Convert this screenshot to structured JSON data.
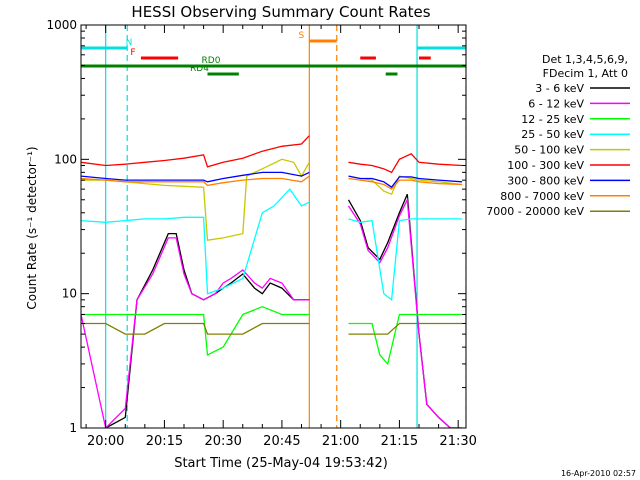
{
  "chart_data": {
    "type": "line",
    "title": "HESSI Observing Summary Count Rates",
    "xlabel": "Start Time (25-May-04 19:53:42)",
    "ylabel": "Count Rate (s⁻¹ detector⁻¹)",
    "yscale": "log",
    "ylim": [
      1,
      1000
    ],
    "xlim_minutes": [
      1193.7,
      1292
    ],
    "x_tick_labels": [
      "20:00",
      "20:15",
      "20:30",
      "20:45",
      "21:00",
      "21:15",
      "21:30"
    ],
    "x_tick_minutes": [
      1200,
      1215,
      1230,
      1245,
      1260,
      1275,
      1290
    ],
    "y_tick_labels": [
      "1",
      "10",
      "100",
      "1000"
    ],
    "y_tick_values": [
      1,
      10,
      100,
      1000
    ],
    "legend_header": [
      "Det 1,3,4,5,6,9,",
      "FDecim 1, Att 0"
    ],
    "legend_position": "right",
    "footer_date": "16-Apr-2010 02:57",
    "flags": [
      {
        "label": "N",
        "color": "#00e0e0",
        "segments": [
          [
            1193.7,
            1205.5
          ],
          [
            1279.5,
            1292
          ]
        ]
      },
      {
        "label": "F",
        "color": "#ff0000",
        "segments": [
          [
            1209,
            1218.5
          ],
          [
            1265,
            1269
          ],
          [
            1280,
            1283
          ]
        ]
      },
      {
        "label": "S",
        "color": "#ff8000",
        "segments": [
          [
            1252,
            1259
          ]
        ]
      },
      {
        "label": "RD0",
        "color": "#008000",
        "segments": [
          [
            1193.7,
            1292
          ]
        ]
      },
      {
        "label": "RD4",
        "color": "#008000",
        "segments": [
          [
            1226,
            1234
          ],
          [
            1271.5,
            1274.5
          ]
        ]
      }
    ],
    "vlines": [
      {
        "x": 1200,
        "color": "#00e0e0",
        "style": "solid"
      },
      {
        "x": 1205.5,
        "color": "#00e0e0",
        "style": "dashed"
      },
      {
        "x": 1252,
        "color": "#ff8000",
        "style": "solid"
      },
      {
        "x": 1259,
        "color": "#ff8000",
        "style": "dashed"
      },
      {
        "x": 1279.5,
        "color": "#00e0e0",
        "style": "solid"
      },
      {
        "x": 1292,
        "color": "#00e0e0",
        "style": "dashed"
      }
    ],
    "series": [
      {
        "name": "3 - 6 keV",
        "color": "#000000",
        "x": [
          1200,
          1205,
          1208,
          1212,
          1216,
          1218,
          1220,
          1222,
          1225,
          1228,
          1230,
          1232,
          1235,
          1238,
          1240,
          1242,
          1245,
          1248,
          1250,
          1252,
          1259,
          1262,
          1265,
          1267,
          1270,
          1272,
          1275,
          1277,
          1280,
          1282,
          1285,
          1288,
          1291
        ],
        "y": [
          1,
          1.2,
          9,
          15,
          28,
          28,
          15,
          10,
          9,
          10,
          11,
          12,
          14,
          11,
          10,
          12,
          11,
          9,
          9,
          9,
          null,
          50,
          35,
          22,
          18,
          24,
          40,
          55,
          5,
          1.5,
          1.2,
          1,
          1
        ]
      },
      {
        "name": "6 - 12 keV",
        "color": "#ff00ff",
        "x": [
          1193.7,
          1200,
          1205,
          1208,
          1212,
          1216,
          1218,
          1220,
          1222,
          1225,
          1228,
          1230,
          1232,
          1235,
          1238,
          1240,
          1242,
          1245,
          1248,
          1250,
          1252,
          1259,
          1262,
          1265,
          1267,
          1270,
          1272,
          1275,
          1277,
          1280,
          1282,
          1285,
          1288,
          1291
        ],
        "y": [
          7,
          1,
          1.4,
          9,
          14,
          26,
          26,
          14,
          10,
          9,
          10,
          12,
          13,
          15,
          12,
          11,
          13,
          12,
          9,
          9,
          9,
          null,
          45,
          33,
          21,
          17,
          22,
          38,
          50,
          5,
          1.5,
          1.2,
          1,
          1
        ]
      },
      {
        "name": "12 - 25 keV",
        "color": "#00ff00",
        "x": [
          1193.7,
          1200,
          1205,
          1210,
          1215,
          1220,
          1225,
          1226,
          1230,
          1235,
          1240,
          1245,
          1250,
          1252,
          1259,
          1262,
          1265,
          1268,
          1270,
          1272,
          1275,
          1278,
          1280,
          1285,
          1291
        ],
        "y": [
          7,
          7,
          7,
          7,
          7,
          7,
          7,
          3.5,
          4,
          7,
          8,
          7,
          7,
          7,
          null,
          6,
          6,
          6,
          3.5,
          3,
          7,
          7,
          7,
          7,
          7
        ]
      },
      {
        "name": "25 - 50 keV",
        "color": "#00ffff",
        "x": [
          1193.7,
          1200,
          1205,
          1210,
          1215,
          1220,
          1225,
          1226,
          1230,
          1235,
          1240,
          1243,
          1247,
          1250,
          1252,
          1259,
          1262,
          1265,
          1268,
          1271,
          1273,
          1275,
          1278,
          1280,
          1285,
          1291
        ],
        "y": [
          35,
          34,
          35,
          36,
          36,
          37,
          37,
          10,
          11,
          13,
          40,
          45,
          60,
          45,
          48,
          null,
          36,
          34,
          35,
          10,
          9,
          35,
          36,
          36,
          36,
          36
        ]
      },
      {
        "name": "50 - 100 keV",
        "color": "#c8c800",
        "x": [
          1193.7,
          1200,
          1205,
          1210,
          1215,
          1220,
          1225,
          1226,
          1230,
          1235,
          1236,
          1240,
          1245,
          1248,
          1250,
          1252,
          1259,
          1262,
          1265,
          1268,
          1271,
          1273,
          1275,
          1278,
          1280,
          1285,
          1291
        ],
        "y": [
          70,
          70,
          68,
          66,
          64,
          63,
          62,
          25,
          26,
          28,
          75,
          85,
          100,
          95,
          75,
          95,
          null,
          75,
          72,
          70,
          58,
          55,
          75,
          72,
          70,
          68,
          65
        ]
      },
      {
        "name": "100 - 300 keV",
        "color": "#ff0000",
        "x": [
          1193.7,
          1200,
          1205,
          1210,
          1215,
          1220,
          1225,
          1226,
          1230,
          1235,
          1240,
          1245,
          1250,
          1252,
          1259,
          1262,
          1265,
          1268,
          1271,
          1273,
          1275,
          1278,
          1280,
          1285,
          1291
        ],
        "y": [
          95,
          90,
          92,
          95,
          98,
          102,
          108,
          88,
          95,
          102,
          115,
          125,
          130,
          150,
          null,
          95,
          92,
          90,
          85,
          80,
          100,
          110,
          95,
          92,
          90
        ]
      },
      {
        "name": "300 - 800 keV",
        "color": "#0000ff",
        "x": [
          1193.7,
          1200,
          1205,
          1210,
          1215,
          1220,
          1225,
          1226,
          1230,
          1235,
          1240,
          1245,
          1250,
          1252,
          1259,
          1262,
          1265,
          1268,
          1271,
          1273,
          1275,
          1278,
          1280,
          1285,
          1291
        ],
        "y": [
          75,
          72,
          70,
          70,
          70,
          70,
          70,
          68,
          72,
          76,
          80,
          80,
          75,
          80,
          null,
          75,
          72,
          72,
          68,
          62,
          74,
          74,
          72,
          70,
          68
        ]
      },
      {
        "name": "800 - 7000 keV",
        "color": "#ff8000",
        "x": [
          1193.7,
          1200,
          1205,
          1210,
          1215,
          1220,
          1225,
          1226,
          1230,
          1235,
          1240,
          1245,
          1250,
          1252,
          1259,
          1262,
          1265,
          1268,
          1271,
          1273,
          1275,
          1278,
          1280,
          1285,
          1291
        ],
        "y": [
          72,
          70,
          68,
          68,
          68,
          68,
          68,
          64,
          67,
          70,
          72,
          72,
          68,
          75,
          null,
          72,
          70,
          68,
          65,
          60,
          70,
          70,
          68,
          66,
          65
        ]
      },
      {
        "name": "7000 - 20000 keV",
        "color": "#808000",
        "x": [
          1193.7,
          1200,
          1205,
          1210,
          1215,
          1220,
          1225,
          1226,
          1230,
          1235,
          1240,
          1245,
          1250,
          1252,
          1259,
          1262,
          1265,
          1268,
          1270,
          1272,
          1275,
          1278,
          1280,
          1285,
          1291
        ],
        "y": [
          6,
          6,
          5,
          5,
          6,
          6,
          6,
          5,
          5,
          5,
          6,
          6,
          6,
          6,
          null,
          5,
          5,
          5,
          5,
          5,
          6,
          6,
          6,
          6,
          6
        ]
      }
    ]
  }
}
